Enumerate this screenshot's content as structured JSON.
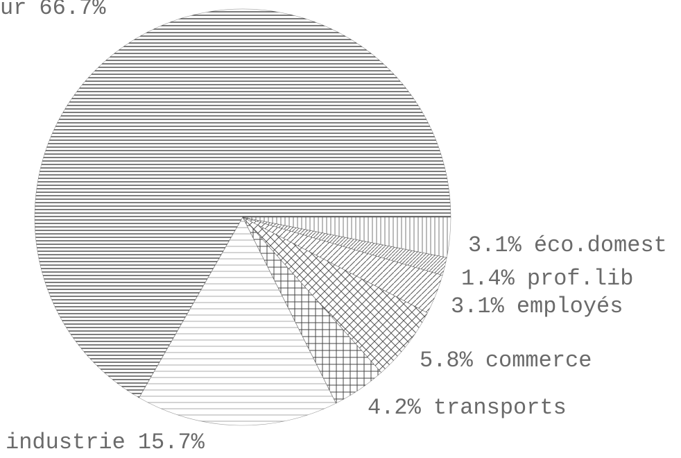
{
  "chart_data": {
    "type": "pie",
    "categories": [
      "ur",
      "industrie",
      "transports",
      "commerce",
      "employés",
      "prof.lib",
      "éco.domest"
    ],
    "values": [
      66.7,
      15.7,
      4.2,
      5.8,
      3.1,
      1.4,
      3.1
    ],
    "value_labels": [
      "66.7%",
      "15.7%",
      "4.2%",
      "5.8%",
      "3.1%",
      "1.4%",
      "3.1%"
    ],
    "color": "#3a3a3a"
  }
}
